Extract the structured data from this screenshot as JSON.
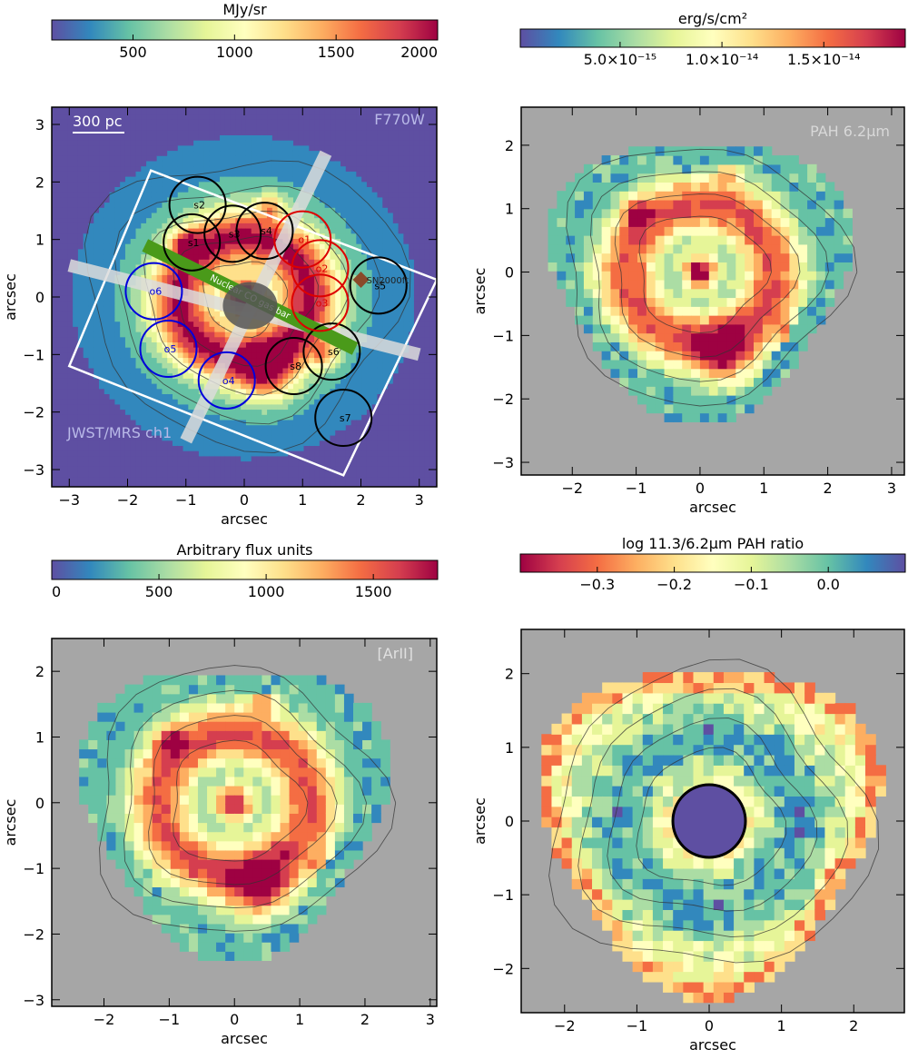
{
  "chart_data": [
    {
      "type": "heatmap",
      "panel": "top-left",
      "colorbar_title": "MJy/sr",
      "colorbar_range": [
        100,
        2000
      ],
      "colorbar_ticks": [
        500,
        1000,
        1500,
        2000
      ],
      "colorbar_tick_labels": [
        "500",
        "1000",
        "1500",
        "2000"
      ],
      "filter_label": "F770W",
      "instrument_label": "JWST/MRS ch1",
      "scale_bar_label": "300 pc",
      "xlabel": "arcsec",
      "ylabel": "arcsec",
      "xlim": [
        -3.3,
        3.3
      ],
      "ylim": [
        -3.3,
        3.3
      ],
      "xticks": [
        -3,
        -2,
        -1,
        0,
        1,
        2,
        3
      ],
      "yticks": [
        -3,
        -2,
        -1,
        0,
        1,
        2,
        3
      ],
      "bar_label": "Nuclear CO gas bar",
      "supernova_label": "SN2000ft",
      "supernova_position": [
        2.0,
        0.3
      ],
      "regions": [
        {
          "name": "s1",
          "x": -0.9,
          "y": 0.95,
          "color": "#000000"
        },
        {
          "name": "s2",
          "x": -0.8,
          "y": 1.6,
          "color": "#000000"
        },
        {
          "name": "s3",
          "x": -0.2,
          "y": 1.1,
          "color": "#000000"
        },
        {
          "name": "s4",
          "x": 0.35,
          "y": 1.15,
          "color": "#000000"
        },
        {
          "name": "s5",
          "x": 2.3,
          "y": 0.2,
          "color": "#000000"
        },
        {
          "name": "s6",
          "x": 1.5,
          "y": -0.95,
          "color": "#000000"
        },
        {
          "name": "s7",
          "x": 1.7,
          "y": -2.1,
          "color": "#000000"
        },
        {
          "name": "s8",
          "x": 0.85,
          "y": -1.2,
          "color": "#000000"
        },
        {
          "name": "o1",
          "x": 1.0,
          "y": 1.0,
          "color": "#dd0000"
        },
        {
          "name": "o2",
          "x": 1.3,
          "y": 0.5,
          "color": "#dd0000"
        },
        {
          "name": "o3",
          "x": 1.3,
          "y": -0.1,
          "color": "#dd0000"
        },
        {
          "name": "o4",
          "x": -0.3,
          "y": -1.45,
          "color": "#0000dd"
        },
        {
          "name": "o5",
          "x": -1.3,
          "y": -0.9,
          "color": "#0000dd"
        },
        {
          "name": "o6",
          "x": -1.55,
          "y": 0.1,
          "color": "#0000dd"
        }
      ]
    },
    {
      "type": "heatmap",
      "panel": "top-right",
      "colorbar_title": "erg/s/cm²",
      "colorbar_range": [
        1e-16,
        1.9e-14
      ],
      "colorbar_ticks": [
        5e-15,
        1e-14,
        1.5e-14
      ],
      "colorbar_tick_labels": [
        "5.0×10⁻¹⁵",
        "1.0×10⁻¹⁴",
        "1.5×10⁻¹⁴"
      ],
      "map_label": "PAH 6.2μm",
      "xlabel": "arcsec",
      "ylabel": "arcsec",
      "xlim": [
        -2.8,
        3.2
      ],
      "ylim": [
        -3.2,
        2.6
      ],
      "xticks": [
        -2,
        -1,
        0,
        1,
        2,
        3
      ],
      "yticks": [
        -3,
        -2,
        -1,
        0,
        1,
        2
      ]
    },
    {
      "type": "heatmap",
      "panel": "bottom-left",
      "colorbar_title": "Arbitrary flux units",
      "colorbar_range": [
        0,
        1800
      ],
      "colorbar_ticks": [
        0,
        500,
        1000,
        1500
      ],
      "colorbar_tick_labels": [
        "0",
        "500",
        "1000",
        "1500"
      ],
      "map_label": "[ArII]",
      "xlabel": "arcsec",
      "ylabel": "arcsec",
      "xlim": [
        -2.8,
        3.1
      ],
      "ylim": [
        -3.1,
        2.5
      ],
      "xticks": [
        -2,
        -1,
        0,
        1,
        2,
        3
      ],
      "yticks": [
        -3,
        -2,
        -1,
        0,
        1,
        2
      ]
    },
    {
      "type": "heatmap",
      "panel": "bottom-right",
      "colorbar_title": "log 11.3/6.2μm PAH ratio",
      "colorbar_range": [
        -0.4,
        0.1
      ],
      "colorbar_ticks": [
        -0.3,
        -0.2,
        -0.1,
        0.0
      ],
      "colorbar_tick_labels": [
        "−0.3",
        "−0.2",
        "−0.1",
        "0.0"
      ],
      "xlabel": "arcsec",
      "ylabel": "arcsec",
      "xlim": [
        -2.6,
        2.7
      ],
      "ylim": [
        -2.6,
        2.6
      ],
      "xticks": [
        -2,
        -1,
        0,
        1,
        2
      ],
      "yticks": [
        -2,
        -1,
        0,
        1,
        2
      ]
    }
  ]
}
